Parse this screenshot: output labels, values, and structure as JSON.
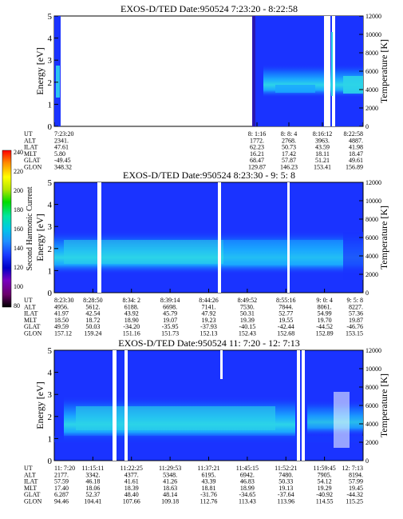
{
  "colorbar": {
    "label": "Second Harmonic Current",
    "ticks": [
      "240",
      "220",
      "200",
      "180",
      "160",
      "140",
      "120",
      "100",
      "80"
    ],
    "colors": [
      "#000000",
      "#6a006a",
      "#7a00c0",
      "#0000c8",
      "#1838ff",
      "#1e90ff",
      "#00c8e6",
      "#00e6a0",
      "#00dc00",
      "#b4e600",
      "#ffff00",
      "#ff8c00",
      "#ff0000"
    ]
  },
  "row_labels": [
    "UT",
    "ALT",
    "ILAT",
    "MLT",
    "GLAT",
    "GLON"
  ],
  "chart_data": [
    {
      "type": "heatmap",
      "title": "EXOS-D/TED   Date:950524  7:23:20 - 8:22:58",
      "ylabel": "Energy [eV]",
      "y2label": "Temperature [K]",
      "ylim": [
        0,
        5
      ],
      "y2lim": [
        0,
        12000
      ],
      "yticks": [
        "0",
        "1",
        "2",
        "3",
        "4",
        "5"
      ],
      "y2ticks": [
        "0",
        "2000",
        "4000",
        "6000",
        "8000",
        "10000",
        "12000"
      ],
      "orbit": [
        {
          "UT": "7:23:20",
          "ALT": "2341.",
          "ILAT": "47.61",
          "MLT": "5.80",
          "GLAT": "-49.45",
          "GLON": "348.32"
        },
        {
          "UT": "8: 1:16",
          "ALT": "1772.",
          "ILAT": "62.23",
          "MLT": "16.21",
          "GLAT": "68.47",
          "GLON": "129.87"
        },
        {
          "UT": "8: 8: 4",
          "ALT": "2768.",
          "ILAT": "50.73",
          "MLT": "17.42",
          "GLAT": "57.87",
          "GLON": "146.23"
        },
        {
          "UT": "8:16:12",
          "ALT": "3963.",
          "ILAT": "43.59",
          "MLT": "18.11",
          "GLAT": "51.21",
          "GLON": "153.41"
        },
        {
          "UT": "8:22:58",
          "ALT": "4887.",
          "ILAT": "41.98",
          "MLT": "18.47",
          "GLAT": "49.61",
          "GLON": "156.89"
        }
      ]
    },
    {
      "type": "heatmap",
      "title": "EXOS-D/TED   Date:950524  8:23:30 - 9: 5: 8",
      "ylabel": "Energy [eV]",
      "y2label": "Temperature [K]",
      "ylim": [
        0,
        5
      ],
      "y2lim": [
        0,
        12000
      ],
      "yticks": [
        "0",
        "1",
        "2",
        "3",
        "4",
        "5"
      ],
      "y2ticks": [
        "0",
        "2000",
        "4000",
        "6000",
        "8000",
        "10000",
        "12000"
      ],
      "orbit": [
        {
          "UT": "8:23:30",
          "ALT": "4956.",
          "ILAT": "41.97",
          "MLT": "18.50",
          "GLAT": "49.59",
          "GLON": "157.12"
        },
        {
          "UT": "8:28:50",
          "ALT": "5612.",
          "ILAT": "42.54",
          "MLT": "18.72",
          "GLAT": "50.03",
          "GLON": "159.24"
        },
        {
          "UT": "8:34: 2",
          "ALT": "6188.",
          "ILAT": "43.92",
          "MLT": "18.90",
          "GLAT": "-34.20",
          "GLON": "151.16"
        },
        {
          "UT": "8:39:14",
          "ALT": "6698.",
          "ILAT": "45.79",
          "MLT": "19.07",
          "GLAT": "-35.95",
          "GLON": "151.73"
        },
        {
          "UT": "8:44:26",
          "ALT": "7141.",
          "ILAT": "47.92",
          "MLT": "19.23",
          "GLAT": "-37.93",
          "GLON": "152.13"
        },
        {
          "UT": "8:49:52",
          "ALT": "7530.",
          "ILAT": "50.31",
          "MLT": "19.39",
          "GLAT": "-40.15",
          "GLON": "152.43"
        },
        {
          "UT": "8:55:16",
          "ALT": "7844.",
          "ILAT": "52.77",
          "MLT": "19.55",
          "GLAT": "-42.44",
          "GLON": "152.68"
        },
        {
          "UT": "9: 0: 4",
          "ALT": "8061.",
          "ILAT": "54.99",
          "MLT": "19.70",
          "GLAT": "-44.52",
          "GLON": "152.89"
        },
        {
          "UT": "9: 5: 8",
          "ALT": "8227.",
          "ILAT": "57.36",
          "MLT": "19.87",
          "GLAT": "-46.76",
          "GLON": "153.15"
        }
      ]
    },
    {
      "type": "heatmap",
      "title": "EXOS-D/TED   Date:950524  11: 7:20 - 12: 7:13",
      "ylabel": "Energy [eV]",
      "y2label": "Temperature [K]",
      "ylim": [
        0,
        5
      ],
      "y2lim": [
        0,
        12000
      ],
      "yticks": [
        "0",
        "1",
        "2",
        "3",
        "4",
        "5"
      ],
      "y2ticks": [
        "0",
        "2000",
        "4000",
        "6000",
        "8000",
        "10000",
        "12000"
      ],
      "orbit": [
        {
          "UT": "11: 7:20",
          "ALT": "2177.",
          "ILAT": "57.59",
          "MLT": "17.40",
          "GLAT": "6.287",
          "GLON": "94.46"
        },
        {
          "UT": "11:15:11",
          "ALT": "3342.",
          "ILAT": "46.18",
          "MLT": "18.06",
          "GLAT": "52.37",
          "GLON": "104.41"
        },
        {
          "UT": "11:22:25",
          "ALT": "4377.",
          "ILAT": "41.61",
          "MLT": "18.39",
          "GLAT": "48.40",
          "GLON": "107.66"
        },
        {
          "UT": "11:29:53",
          "ALT": "5348.",
          "ILAT": "41.26",
          "MLT": "18.63",
          "GLAT": "48.14",
          "GLON": "109.18"
        },
        {
          "UT": "11:37:21",
          "ALT": "6195.",
          "ILAT": "43.39",
          "MLT": "18.81",
          "GLAT": "-31.76",
          "GLON": "112.76"
        },
        {
          "UT": "11:45:15",
          "ALT": "6942.",
          "ILAT": "46.83",
          "MLT": "18.99",
          "GLAT": "-34.65",
          "GLON": "113.43"
        },
        {
          "UT": "11:52:21",
          "ALT": "7480.",
          "ILAT": "50.33",
          "MLT": "19.13",
          "GLAT": "-37.64",
          "GLON": "113.96"
        },
        {
          "UT": "11:59:45",
          "ALT": "7905.",
          "ILAT": "54.12",
          "MLT": "19.29",
          "GLAT": "-40.92",
          "GLON": "114.55"
        },
        {
          "UT": "12: 7:13",
          "ALT": "8194.",
          "ILAT": "57.99",
          "MLT": "19.45",
          "GLAT": "-44.32",
          "GLON": "115.25"
        }
      ]
    }
  ]
}
